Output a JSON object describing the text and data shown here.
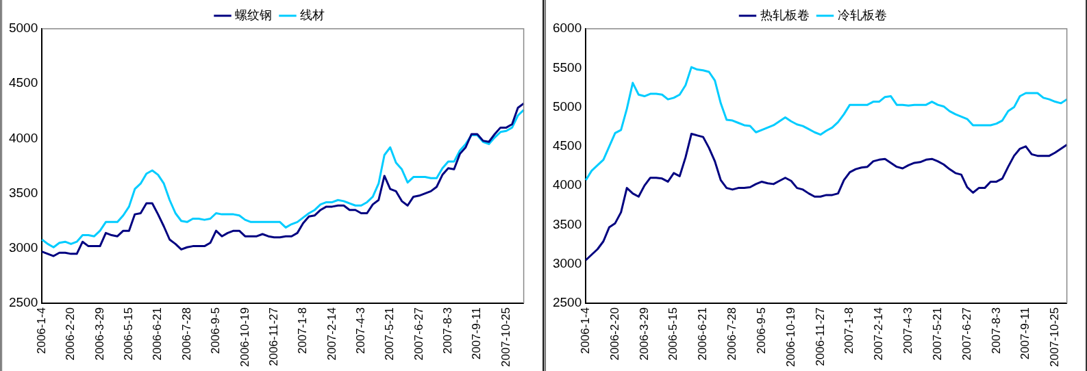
{
  "chart_data": [
    {
      "type": "line",
      "categories": [
        "2006-1-4",
        null,
        null,
        null,
        null,
        "2006-2-20",
        null,
        null,
        null,
        null,
        "2006-3-29",
        null,
        null,
        null,
        null,
        "2006-5-15",
        null,
        null,
        null,
        null,
        "2006-6-21",
        null,
        null,
        null,
        null,
        "2006-7-28",
        null,
        null,
        null,
        null,
        "2006-9-5",
        null,
        null,
        null,
        null,
        "2006-10-19",
        null,
        null,
        null,
        null,
        "2006-11-27",
        null,
        null,
        null,
        null,
        "2007-1-8",
        null,
        null,
        null,
        null,
        "2007-2-14",
        null,
        null,
        null,
        null,
        "2007-4-3",
        null,
        null,
        null,
        null,
        "2007-5-21",
        null,
        null,
        null,
        null,
        "2007-6-27",
        null,
        null,
        null,
        null,
        "2007-8-3",
        null,
        null,
        null,
        null,
        "2007-9-11",
        null,
        null,
        null,
        null,
        "2007-10-25",
        null,
        null,
        null
      ],
      "series": [
        {
          "name": "螺纹钢",
          "color": "#000080",
          "values": [
            2970,
            2950,
            2930,
            2960,
            2960,
            2950,
            2950,
            3060,
            3020,
            3020,
            3020,
            3140,
            3120,
            3110,
            3160,
            3160,
            3310,
            3320,
            3410,
            3410,
            3310,
            3200,
            3080,
            3040,
            2990,
            3010,
            3020,
            3020,
            3020,
            3050,
            3160,
            3110,
            3140,
            3160,
            3160,
            3110,
            3110,
            3110,
            3130,
            3110,
            3100,
            3100,
            3110,
            3110,
            3140,
            3230,
            3290,
            3300,
            3350,
            3380,
            3380,
            3390,
            3390,
            3350,
            3350,
            3320,
            3320,
            3400,
            3440,
            3660,
            3540,
            3520,
            3430,
            3390,
            3470,
            3480,
            3500,
            3520,
            3560,
            3670,
            3730,
            3720,
            3860,
            3920,
            4040,
            4040,
            3980,
            3970,
            4040,
            4100,
            4100,
            4130,
            4280,
            4320
          ]
        },
        {
          "name": "线材",
          "color": "#00ccff",
          "values": [
            3080,
            3040,
            3010,
            3050,
            3060,
            3040,
            3060,
            3120,
            3120,
            3110,
            3160,
            3240,
            3240,
            3240,
            3300,
            3380,
            3540,
            3590,
            3680,
            3710,
            3670,
            3590,
            3440,
            3320,
            3250,
            3240,
            3270,
            3270,
            3260,
            3270,
            3320,
            3310,
            3310,
            3310,
            3300,
            3260,
            3240,
            3240,
            3240,
            3240,
            3240,
            3240,
            3190,
            3220,
            3240,
            3280,
            3320,
            3350,
            3400,
            3420,
            3420,
            3440,
            3430,
            3410,
            3390,
            3390,
            3420,
            3470,
            3590,
            3850,
            3920,
            3780,
            3720,
            3600,
            3650,
            3650,
            3650,
            3640,
            3640,
            3730,
            3790,
            3790,
            3890,
            3950,
            4030,
            4030,
            3970,
            3950,
            4010,
            4060,
            4070,
            4100,
            4210,
            4260
          ]
        }
      ],
      "ylim": [
        2500,
        5000
      ],
      "yticks": [
        2500,
        3000,
        3500,
        4000,
        4500,
        5000
      ],
      "legend": "top",
      "line_style": "solid",
      "marker": "none"
    },
    {
      "type": "line",
      "categories": [
        "2006-1-4",
        null,
        null,
        null,
        null,
        "2006-2-20",
        null,
        null,
        null,
        null,
        "2006-3-29",
        null,
        null,
        null,
        null,
        "2006-5-15",
        null,
        null,
        null,
        null,
        "2006-6-21",
        null,
        null,
        null,
        null,
        "2006-7-28",
        null,
        null,
        null,
        null,
        "2006-9-5",
        null,
        null,
        null,
        null,
        "2006-10-19",
        null,
        null,
        null,
        null,
        "2006-11-27",
        null,
        null,
        null,
        null,
        "2007-1-8",
        null,
        null,
        null,
        null,
        "2007-2-14",
        null,
        null,
        null,
        null,
        "2007-4-3",
        null,
        null,
        null,
        null,
        "2007-5-21",
        null,
        null,
        null,
        null,
        "2007-6-27",
        null,
        null,
        null,
        null,
        "2007-8-3",
        null,
        null,
        null,
        null,
        "2007-9-11",
        null,
        null,
        null,
        null,
        "2007-10-25",
        null,
        null
      ],
      "series": [
        {
          "name": "热轧板卷",
          "color": "#000080",
          "values": [
            3050,
            3120,
            3190,
            3290,
            3470,
            3520,
            3660,
            3970,
            3900,
            3860,
            4000,
            4100,
            4100,
            4090,
            4050,
            4160,
            4120,
            4360,
            4660,
            4640,
            4620,
            4480,
            4310,
            4070,
            3970,
            3950,
            3970,
            3970,
            3980,
            4020,
            4050,
            4030,
            4020,
            4060,
            4100,
            4060,
            3970,
            3950,
            3900,
            3860,
            3860,
            3880,
            3880,
            3900,
            4070,
            4170,
            4210,
            4230,
            4240,
            4310,
            4330,
            4340,
            4290,
            4240,
            4220,
            4260,
            4290,
            4300,
            4330,
            4340,
            4310,
            4270,
            4210,
            4160,
            4140,
            3980,
            3910,
            3970,
            3970,
            4050,
            4050,
            4090,
            4240,
            4380,
            4470,
            4500,
            4400,
            4380,
            4380,
            4380,
            4420,
            4470,
            4520
          ]
        },
        {
          "name": "冷轧板卷",
          "color": "#00ccff",
          "values": [
            4070,
            4190,
            4260,
            4330,
            4500,
            4670,
            4710,
            4980,
            5310,
            5160,
            5140,
            5170,
            5170,
            5160,
            5100,
            5120,
            5160,
            5280,
            5510,
            5480,
            5470,
            5450,
            5340,
            5050,
            4840,
            4830,
            4800,
            4770,
            4760,
            4680,
            4710,
            4740,
            4770,
            4820,
            4870,
            4820,
            4780,
            4760,
            4720,
            4680,
            4650,
            4700,
            4740,
            4810,
            4910,
            5030,
            5030,
            5030,
            5030,
            5070,
            5070,
            5130,
            5140,
            5030,
            5030,
            5020,
            5030,
            5030,
            5030,
            5070,
            5030,
            5010,
            4950,
            4910,
            4880,
            4850,
            4770,
            4770,
            4770,
            4770,
            4790,
            4830,
            4950,
            5000,
            5140,
            5180,
            5180,
            5180,
            5120,
            5100,
            5070,
            5050,
            5100
          ]
        }
      ],
      "ylim": [
        2500,
        6000
      ],
      "yticks": [
        2500,
        3000,
        3500,
        4000,
        4500,
        5000,
        5500,
        6000
      ],
      "legend": "top",
      "line_style": "solid",
      "marker": "none"
    }
  ]
}
